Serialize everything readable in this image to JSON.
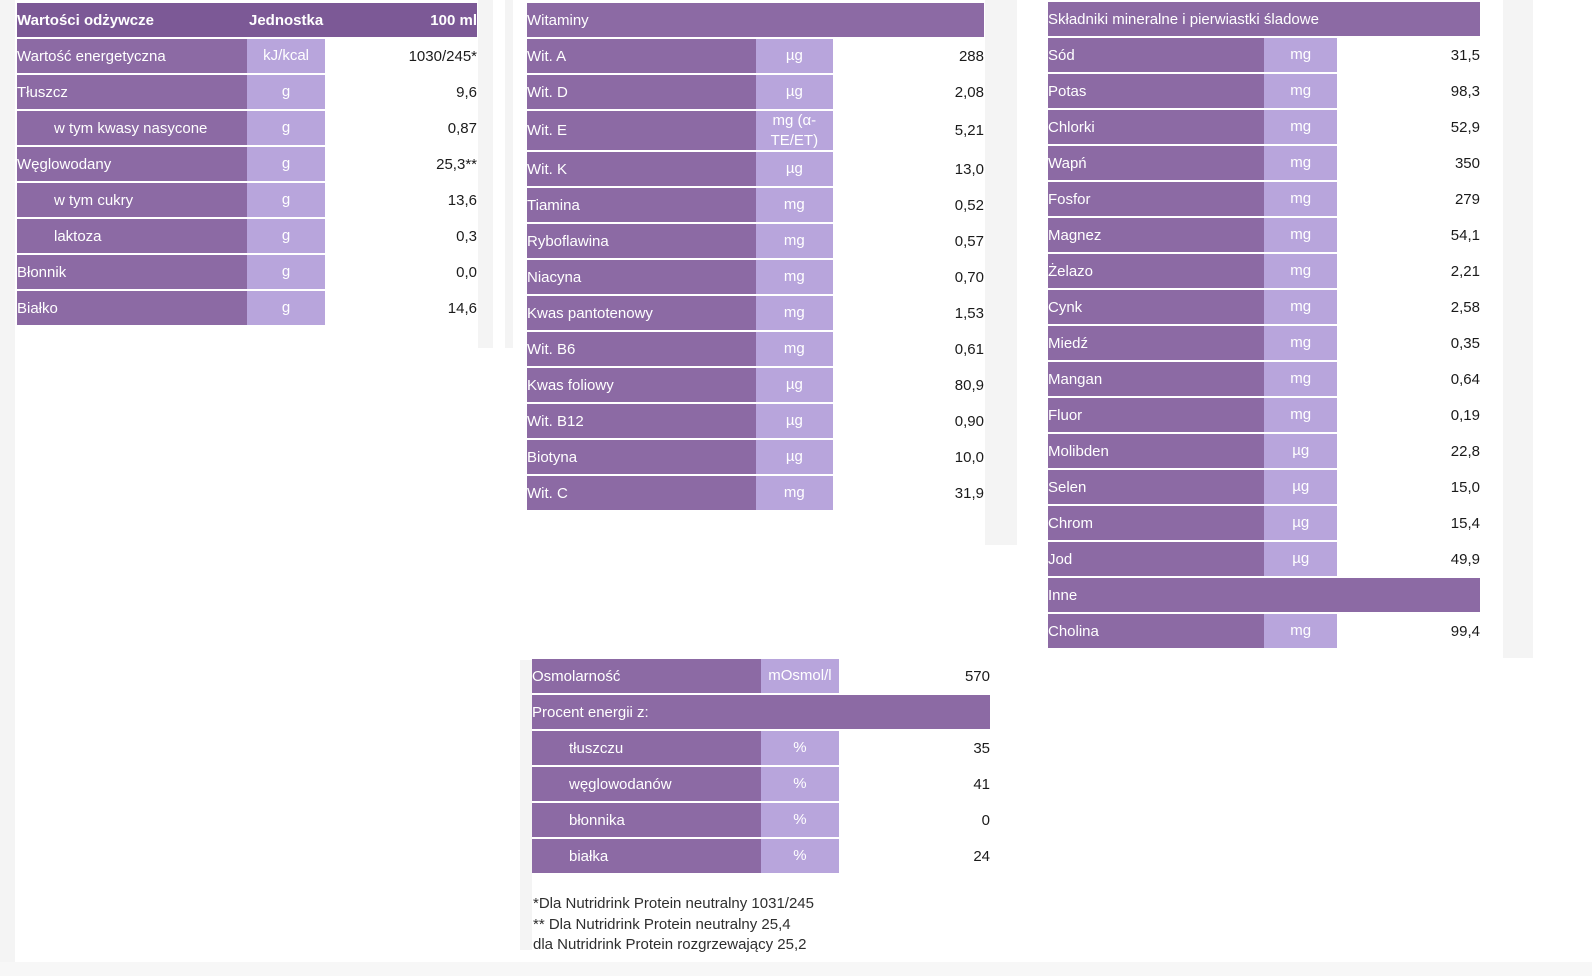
{
  "palette": {
    "table_header_bg": "#7c5996",
    "section_header_bg": "#8c6aa4",
    "label_cell_bg": "#8c6aa4",
    "unit_cell_bg": "#b8a5dc",
    "cell_text": "#ffffff",
    "value_text": "#1b1b1b",
    "row_divider": "#efefef",
    "gutter_gray": "#f4f4f4",
    "page_bg": "#ffffff"
  },
  "nutrition_table": {
    "headers": {
      "label": "Wartości odżywcze",
      "unit": "Jednostka",
      "amount": "100 ml"
    },
    "rows": [
      {
        "label": "Wartość energetyczna",
        "unit": "kJ/kcal",
        "value": "1030/245*",
        "indent": false
      },
      {
        "label": "Tłuszcz",
        "unit": "g",
        "value": "9,6",
        "indent": false
      },
      {
        "label": "w tym kwasy nasycone",
        "unit": "g",
        "value": "0,87",
        "indent": true
      },
      {
        "label": "Węglowodany",
        "unit": "g",
        "value": "25,3**",
        "indent": false
      },
      {
        "label": "w tym cukry",
        "unit": "g",
        "value": "13,6",
        "indent": true
      },
      {
        "label": "laktoza",
        "unit": "g",
        "value": "0,3",
        "indent": true
      },
      {
        "label": "Błonnik",
        "unit": "g",
        "value": "0,0",
        "indent": false
      },
      {
        "label": "Białko",
        "unit": "g",
        "value": "14,6",
        "indent": false
      }
    ]
  },
  "vitamins_table": {
    "header": "Witaminy",
    "rows": [
      {
        "label": "Wit. A",
        "unit": "µg",
        "value": "288",
        "indent": false
      },
      {
        "label": "Wit. D",
        "unit": "µg",
        "value": "2,08",
        "indent": false
      },
      {
        "label": "Wit. E",
        "unit": "mg (α-TE/ET)",
        "value": "5,21",
        "indent": false
      },
      {
        "label": "Wit. K",
        "unit": "µg",
        "value": "13,0",
        "indent": false
      },
      {
        "label": "Tiamina",
        "unit": "mg",
        "value": "0,52",
        "indent": false
      },
      {
        "label": "Ryboflawina",
        "unit": "mg",
        "value": "0,57",
        "indent": false
      },
      {
        "label": "Niacyna",
        "unit": "mg",
        "value": "0,70",
        "indent": false
      },
      {
        "label": "Kwas pantotenowy",
        "unit": "mg",
        "value": "1,53",
        "indent": false
      },
      {
        "label": "Wit. B6",
        "unit": "mg",
        "value": "0,61",
        "indent": false
      },
      {
        "label": "Kwas foliowy",
        "unit": "µg",
        "value": "80,9",
        "indent": false
      },
      {
        "label": "Wit. B12",
        "unit": "µg",
        "value": "0,90",
        "indent": false
      },
      {
        "label": "Biotyna",
        "unit": "µg",
        "value": "10,0",
        "indent": false
      },
      {
        "label": "Wit. C",
        "unit": "mg",
        "value": "31,9",
        "indent": false
      }
    ]
  },
  "minerals_table": {
    "header": "Składniki mineralne i pierwiastki śladowe",
    "rows": [
      {
        "label": "Sód",
        "unit": "mg",
        "value": "31,5",
        "indent": false
      },
      {
        "label": "Potas",
        "unit": "mg",
        "value": "98,3",
        "indent": false
      },
      {
        "label": "Chlorki",
        "unit": "mg",
        "value": "52,9",
        "indent": false
      },
      {
        "label": "Wapń",
        "unit": "mg",
        "value": "350",
        "indent": false
      },
      {
        "label": "Fosfor",
        "unit": "mg",
        "value": "279",
        "indent": false
      },
      {
        "label": "Magnez",
        "unit": "mg",
        "value": "54,1",
        "indent": false
      },
      {
        "label": "Żelazo",
        "unit": "mg",
        "value": "2,21",
        "indent": false
      },
      {
        "label": "Cynk",
        "unit": "mg",
        "value": "2,58",
        "indent": false
      },
      {
        "label": "Miedź",
        "unit": "mg",
        "value": "0,35",
        "indent": false
      },
      {
        "label": "Mangan",
        "unit": "mg",
        "value": "0,64",
        "indent": false
      },
      {
        "label": "Fluor",
        "unit": "mg",
        "value": "0,19",
        "indent": false
      },
      {
        "label": "Molibden",
        "unit": "µg",
        "value": "22,8",
        "indent": false
      },
      {
        "label": "Selen",
        "unit": "µg",
        "value": "15,0",
        "indent": false
      },
      {
        "label": "Chrom",
        "unit": "µg",
        "value": "15,4",
        "indent": false
      },
      {
        "label": "Jod",
        "unit": "µg",
        "value": "49,9",
        "indent": false
      }
    ],
    "other_header": "Inne",
    "other_rows": [
      {
        "label": "Cholina",
        "unit": "mg",
        "value": "99,4",
        "indent": false
      }
    ]
  },
  "energy_table": {
    "rows_top": [
      {
        "label": "Osmolarność",
        "unit": "mOsmol/l",
        "value": "570",
        "indent": false
      }
    ],
    "header": "Procent energii z:",
    "rows": [
      {
        "label": "tłuszczu",
        "unit": "%",
        "value": "35",
        "indent": true
      },
      {
        "label": "węglowodanów",
        "unit": "%",
        "value": "41",
        "indent": true
      },
      {
        "label": "błonnika",
        "unit": "%",
        "value": "0",
        "indent": true
      },
      {
        "label": "białka",
        "unit": "%",
        "value": "24",
        "indent": true
      }
    ]
  },
  "footnotes": [
    "*Dla Nutridrink Protein neutralny 1031/245",
    "** Dla Nutridrink Protein neutralny 25,4",
    "dla Nutridrink Protein rozgrzewający 25,2"
  ]
}
